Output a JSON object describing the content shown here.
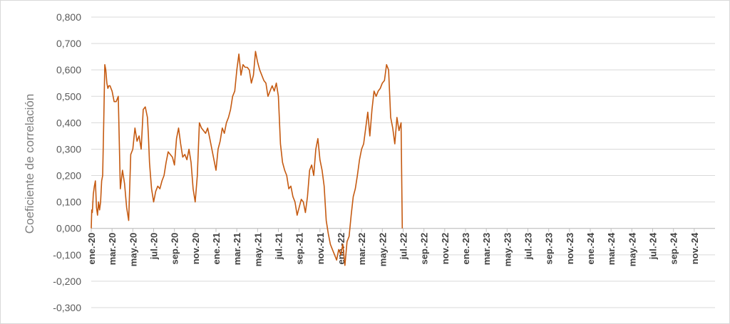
{
  "chart_data": {
    "type": "line",
    "title": "",
    "ylabel": "Coeficiente de correlación",
    "xlabel": "",
    "ylim": [
      -0.3,
      0.8
    ],
    "yticks": [
      "-0,300",
      "-0,200",
      "-0,100",
      "0,000",
      "0,100",
      "0,200",
      "0,300",
      "0,400",
      "0,500",
      "0,600",
      "0,700",
      "0,800"
    ],
    "xticks": [
      "ene.-20",
      "mar.-20",
      "may.-20",
      "jul.-20",
      "sep.-20",
      "nov.-20",
      "ene.-21",
      "mar.-21",
      "may.-21",
      "jul.-21",
      "sep.-21",
      "nov.-21",
      "ene.-22",
      "mar.-22",
      "may.-22",
      "jul.-22",
      "sep.-22",
      "nov.-22",
      "ene.-23",
      "mar.-23",
      "may.-23",
      "jul.-23",
      "sep.-23",
      "nov.-23",
      "ene.-24",
      "mar.-24",
      "may.-24",
      "jul.-24",
      "sep.-24",
      "nov.-24"
    ],
    "grid": true,
    "legend": "none",
    "line_color": "#C55A11",
    "series": [
      {
        "x_month_index": [
          0,
          0.05,
          0.1,
          0.2,
          0.3,
          0.4,
          0.5,
          0.6,
          0.7,
          0.8,
          0.9,
          1.0,
          1.1,
          1.2,
          1.3,
          1.4,
          1.5,
          1.6,
          1.7,
          1.8,
          1.9,
          2.0,
          2.2,
          2.4,
          2.6,
          2.8,
          3.0,
          3.2,
          3.4,
          3.6,
          3.8,
          4.0,
          4.2,
          4.4,
          4.6,
          4.8,
          5.0,
          5.2,
          5.4,
          5.5,
          5.6,
          5.7,
          5.8,
          6.0,
          6.2,
          6.4,
          6.6,
          6.8,
          7.0,
          7.2,
          7.4,
          7.6,
          7.8,
          8.0,
          8.2,
          8.4,
          8.6,
          8.8,
          9.0,
          9.2,
          9.4,
          9.6,
          9.8,
          10.0,
          10.2,
          10.4,
          10.6,
          10.8,
          11.0,
          11.2,
          11.4,
          11.6,
          11.8,
          12.0,
          12.2,
          12.4,
          12.6,
          12.8,
          13.0,
          13.2,
          13.4,
          13.6,
          13.8,
          14.0,
          14.2,
          14.4,
          14.6,
          14.8,
          15.0,
          15.2,
          15.4,
          15.6,
          15.8,
          16.0,
          16.2,
          16.4,
          16.6,
          16.8,
          17.0,
          17.2,
          17.4,
          17.6,
          17.8,
          18.0,
          18.2,
          18.4,
          18.6,
          18.8,
          19.0,
          19.2,
          19.4,
          19.6,
          19.8,
          20.0,
          20.2,
          20.4,
          20.6,
          20.8,
          21.0,
          21.2,
          21.4,
          21.6,
          21.8,
          22.0,
          22.2,
          22.4,
          22.6,
          22.8,
          23.0,
          23.2,
          23.4,
          23.6,
          23.8,
          24.0,
          24.2,
          24.4,
          24.6,
          24.8,
          25.0,
          25.2,
          25.4,
          25.6,
          25.8,
          26.0,
          26.2,
          26.4,
          26.6,
          26.8,
          27.0,
          27.2,
          27.4,
          27.6,
          27.8,
          28.0,
          28.2,
          28.4,
          28.6,
          28.8,
          29.0,
          29.2,
          29.4,
          29.6,
          29.8,
          29.92
        ],
        "values": [
          0.0,
          0.07,
          0.06,
          0.13,
          0.16,
          0.18,
          0.08,
          0.05,
          0.1,
          0.07,
          0.1,
          0.18,
          0.2,
          0.4,
          0.62,
          0.6,
          0.55,
          0.53,
          0.54,
          0.54,
          0.53,
          0.52,
          0.48,
          0.48,
          0.5,
          0.15,
          0.22,
          0.17,
          0.08,
          0.03,
          0.28,
          0.3,
          0.38,
          0.33,
          0.35,
          0.3,
          0.45,
          0.46,
          0.42,
          0.35,
          0.25,
          0.2,
          0.15,
          0.1,
          0.14,
          0.16,
          0.15,
          0.18,
          0.2,
          0.25,
          0.29,
          0.28,
          0.27,
          0.24,
          0.34,
          0.38,
          0.32,
          0.27,
          0.28,
          0.26,
          0.3,
          0.25,
          0.15,
          0.1,
          0.2,
          0.4,
          0.38,
          0.37,
          0.36,
          0.38,
          0.34,
          0.3,
          0.26,
          0.22,
          0.3,
          0.33,
          0.38,
          0.36,
          0.4,
          0.42,
          0.45,
          0.5,
          0.52,
          0.6,
          0.66,
          0.58,
          0.62,
          0.61,
          0.61,
          0.6,
          0.55,
          0.58,
          0.67,
          0.63,
          0.6,
          0.58,
          0.56,
          0.55,
          0.5,
          0.52,
          0.54,
          0.52,
          0.55,
          0.5,
          0.32,
          0.25,
          0.22,
          0.2,
          0.15,
          0.16,
          0.12,
          0.1,
          0.05,
          0.08,
          0.11,
          0.1,
          0.06,
          0.12,
          0.22,
          0.24,
          0.2,
          0.3,
          0.34,
          0.26,
          0.22,
          0.16,
          0.03,
          -0.02,
          -0.06,
          -0.08,
          -0.1,
          -0.12,
          -0.08,
          -0.1,
          -0.06,
          -0.14,
          -0.05,
          -0.03,
          0.05,
          0.12,
          0.15,
          0.2,
          0.26,
          0.3,
          0.32,
          0.38,
          0.44,
          0.35,
          0.45,
          0.52,
          0.5,
          0.52,
          0.53,
          0.55,
          0.56,
          0.62,
          0.6,
          0.42,
          0.38,
          0.32,
          0.42,
          0.37,
          0.4,
          0.0
        ]
      }
    ]
  }
}
